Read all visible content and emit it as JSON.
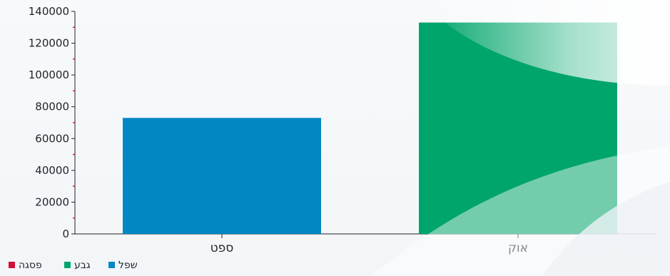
{
  "chart_data": {
    "type": "bar",
    "categories": [
      "ספט",
      "אוק"
    ],
    "series": [
      {
        "name": "שפל",
        "color": "#0287c3",
        "values": [
          73000,
          null
        ]
      },
      {
        "name": "גבע",
        "color": "#00a56b",
        "values": [
          null,
          133000
        ]
      },
      {
        "name": "פסגה",
        "color": "#d0103a",
        "values": [
          null,
          null
        ]
      }
    ],
    "ylim": [
      0,
      140000
    ],
    "yticks": [
      0,
      20000,
      40000,
      60000,
      80000,
      100000,
      120000,
      140000
    ],
    "legend_position": "bottom-left",
    "grid": false
  }
}
